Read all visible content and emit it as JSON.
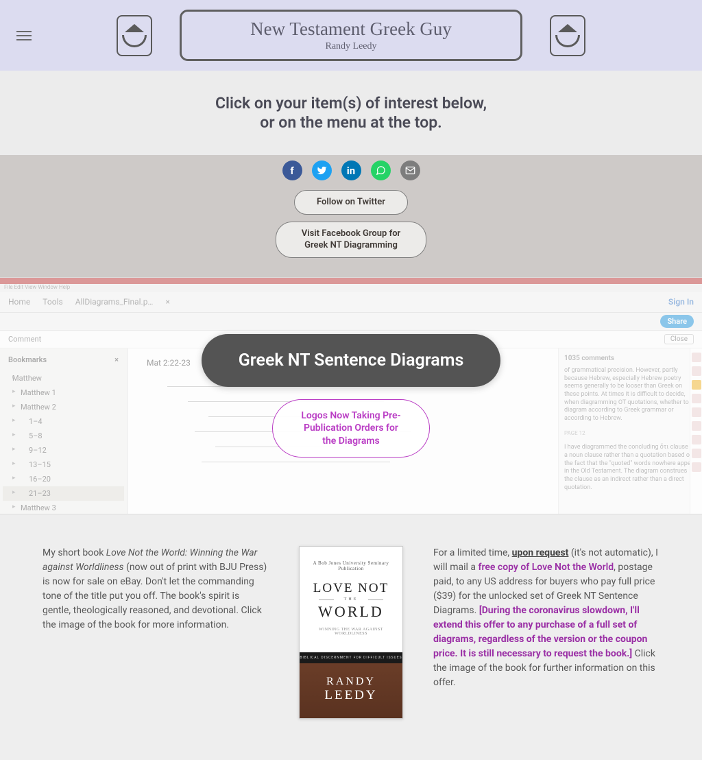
{
  "header": {
    "title": "New Testament Greek Guy",
    "subtitle": "Randy Leedy"
  },
  "intro": {
    "line1": "Click on your item(s) of interest below,",
    "line2": "or on the menu at the top."
  },
  "social": {
    "follow_twitter": "Follow on Twitter",
    "facebook_group": "Visit Facebook Group for Greek NT Diagramming",
    "icons": {
      "facebook": "f",
      "twitter": "t",
      "linkedin": "in",
      "whatsapp": "✆",
      "email": "✉"
    }
  },
  "diagramHero": {
    "mock": {
      "menubar": "File  Edit  View  Window  Help",
      "tabs": {
        "home": "Home",
        "tools": "Tools",
        "file": "AllDiagrams_Final.p…",
        "close": "×",
        "signin": "Sign In"
      },
      "share": "Share",
      "comment": "Comment",
      "close": "Close",
      "bookmarks_head": "Bookmarks",
      "bookmarks_x": "×",
      "bookmarks": [
        "Matthew",
        "Matthew 1",
        "Matthew 2",
        "1–4",
        "5–8",
        "9–12",
        "13–15",
        "16–20",
        "21–23",
        "Matthew 3"
      ],
      "ref": "Mat 2:22-23",
      "right_head": "1035 comments",
      "right_p1": "of grammatical precision. However, partly because Hebrew, especially Hebrew poetry seems generally to be looser than Greek on these points. At times it is difficult to decide, when diagramming OT quotations, whether to diagram according to Greek grammar or according to Hebrew.",
      "right_page": "PAGE 12",
      "right_p2": "I have diagrammed the concluding ὅτι clause as a noun clause rather than a quotation based on the fact that the \"quoted\" words nowhere appear in the Old Testament. The diagram construes the clause as an indirect rather than a direct quotation."
    },
    "gray_pill": "Greek NT Sentence Diagrams",
    "purple_pill": "Logos Now Taking Pre-Publication Orders for the Diagrams"
  },
  "book": {
    "left": {
      "t1": "My short book ",
      "title": "Love Not the World: Winning the War against Worldliness",
      "t2": " (now out of print with BJU Press) is now for sale on eBay. Don't let the commanding tone of the title put you off. The book's spirit is gentle, theologically reasoned, and devotional. Click the image of the book for more information."
    },
    "cover": {
      "publisher": "A Bob Jones University Seminary Publication",
      "line1": "LOVE NOT",
      "the": "THE",
      "line2": "WORLD",
      "tagline": "WINNING THE WAR AGAINST WORLDLINESS",
      "band": "BIBLICAL DISCERNMENT FOR DIFFICULT ISSUES",
      "author_first": "RANDY",
      "author_last": "LEEDY"
    },
    "right": {
      "t1": "For a limited time, ",
      "upon": "upon request",
      "t2": " (it's not automatic), I will mail a ",
      "free": "free copy of Love Not the World",
      "t3": ", postage paid, to any US address for buyers who pay full price ($39) for the unlocked set of Greek NT Sentence Diagrams. ",
      "during": "[During the coronavirus slowdown, I'll extend this offer to any purchase of a full set of diagrams, regardless of the version or the coupon price. It is still necessary to request the book.]",
      "t4": "  Click the image of the book for further information on this offer."
    }
  },
  "colors": {
    "header_bg": "#dcdcf0",
    "share_bg": "#cecac8",
    "purple": "#9a2fa5",
    "gray_pill": "#545454"
  }
}
